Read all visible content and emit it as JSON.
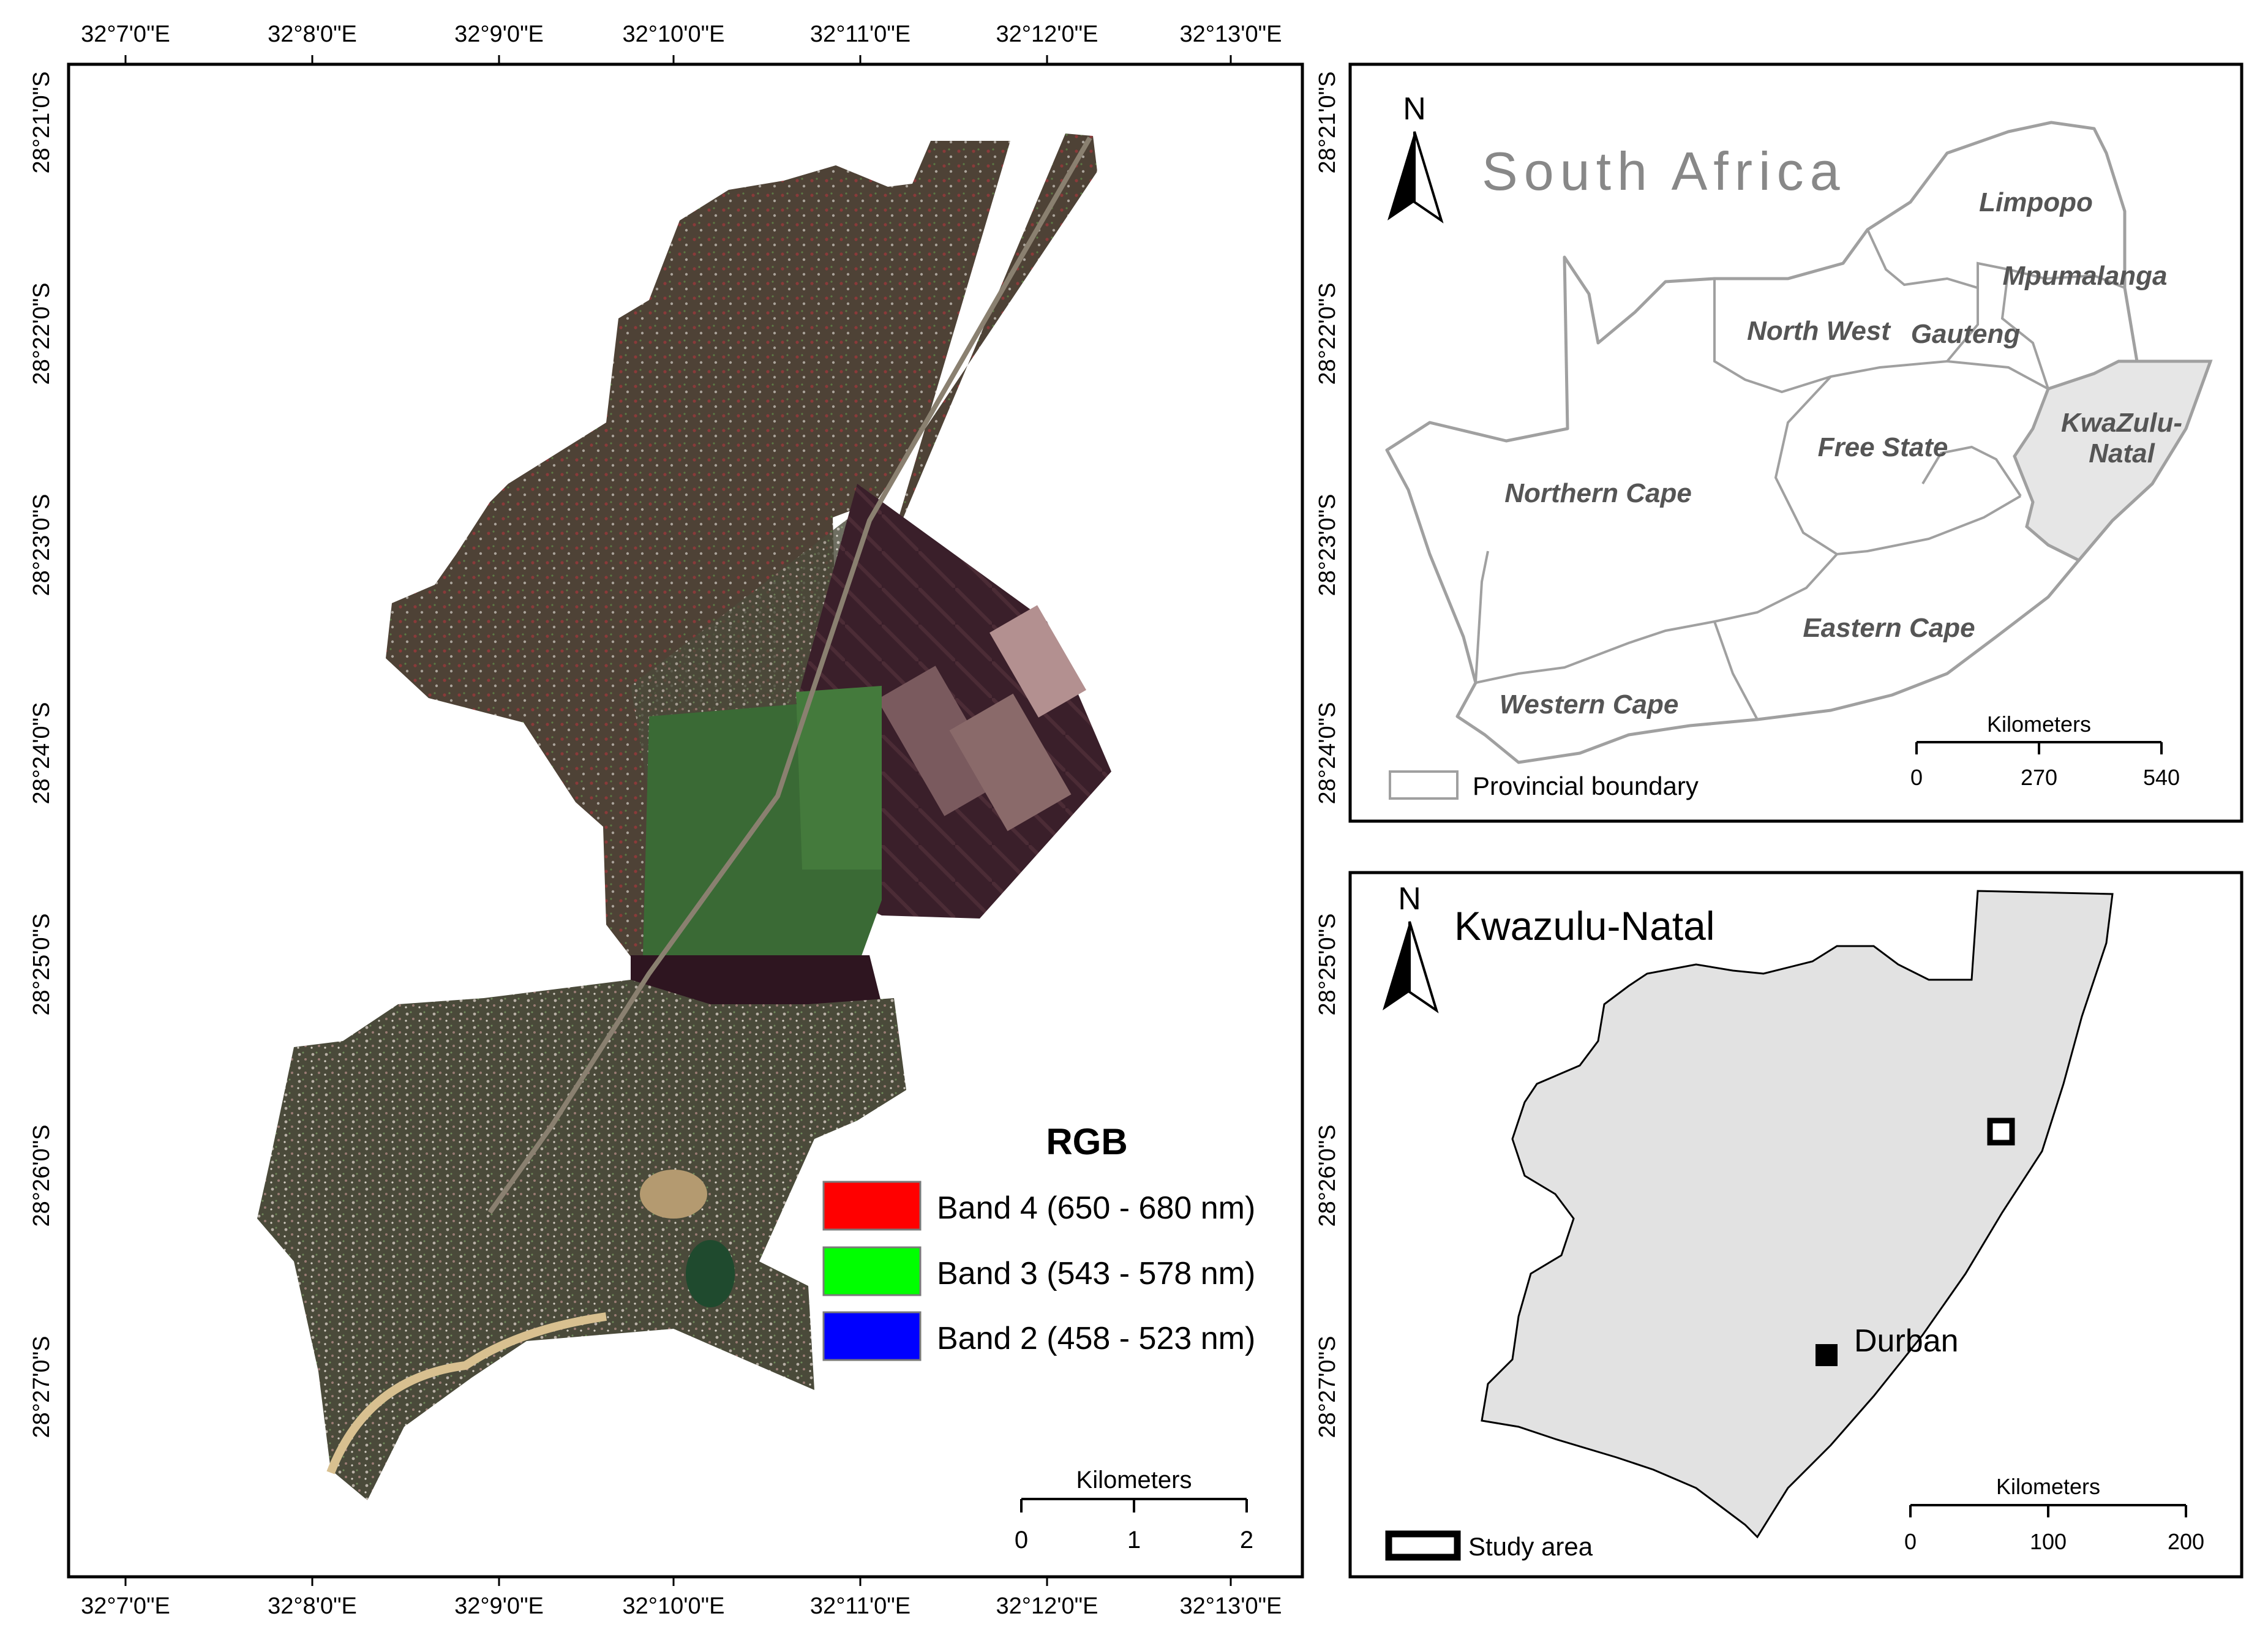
{
  "main_map": {
    "top_ticks": [
      "32°7'0\"E",
      "32°8'0\"E",
      "32°9'0\"E",
      "32°10'0\"E",
      "32°11'0\"E",
      "32°12'0\"E",
      "32°13'0\"E"
    ],
    "bottom_ticks": [
      "32°7'0\"E",
      "32°8'0\"E",
      "32°9'0\"E",
      "32°10'0\"E",
      "32°11'0\"E",
      "32°12'0\"E",
      "32°13'0\"E"
    ],
    "left_ticks": [
      "28°21'0\"S",
      "28°22'0\"S",
      "28°23'0\"S",
      "28°24'0\"S",
      "28°25'0\"S",
      "28°26'0\"S",
      "28°27'0\"S"
    ],
    "right_ticks": [
      "28°21'0\"S",
      "28°22'0\"S",
      "28°23'0\"S",
      "28°24'0\"S",
      "28°25'0\"S",
      "28°26'0\"S",
      "28°27'0\"S"
    ],
    "legend": {
      "title": "RGB",
      "items": [
        {
          "label": "Band 4 (650 - 680 nm)",
          "color": "#ff0000"
        },
        {
          "label": "Band 3 (543 - 578 nm)",
          "color": "#00ff00"
        },
        {
          "label": "Band 2 (458 - 523 nm)",
          "color": "#0000ff"
        }
      ]
    },
    "scale_bar": {
      "unit": "Kilometers",
      "labels": [
        "0",
        "1",
        "2"
      ]
    }
  },
  "south_africa_map": {
    "title": "South Africa",
    "north": "N",
    "provinces": [
      "Limpopo",
      "Mpumalanga",
      "North West",
      "Gauteng",
      "KwaZulu-",
      "Natal",
      "Free State",
      "Northern Cape",
      "Eastern Cape",
      "Western Cape"
    ],
    "legend_label": "Provincial boundary",
    "scale_bar": {
      "unit": "Kilometers",
      "labels": [
        "0",
        "270",
        "540"
      ]
    },
    "highlight_color": "#e6e6e6"
  },
  "kzn_map": {
    "title": "Kwazulu-Natal",
    "north": "N",
    "city": "Durban",
    "legend_label": "Study area",
    "scale_bar": {
      "unit": "Kilometers",
      "labels": [
        "0",
        "100",
        "200"
      ]
    },
    "fill_color": "#e2e2e2"
  }
}
